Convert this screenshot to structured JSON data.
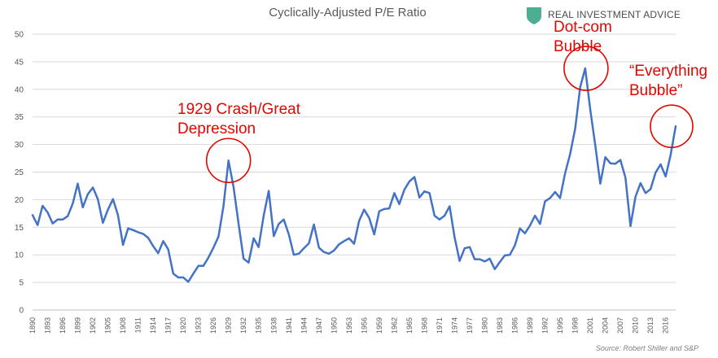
{
  "chart_data": {
    "type": "line",
    "title": "Cyclically-Adjusted P/E Ratio",
    "xlabel": "",
    "ylabel": "",
    "ylim": [
      0,
      50
    ],
    "yticks": [
      0,
      5,
      10,
      15,
      20,
      25,
      30,
      35,
      40,
      45,
      50
    ],
    "xlim": [
      1890,
      2018
    ],
    "xticks": [
      1890,
      1893,
      1896,
      1899,
      1902,
      1905,
      1908,
      1911,
      1914,
      1917,
      1920,
      1923,
      1926,
      1929,
      1932,
      1935,
      1938,
      1941,
      1944,
      1947,
      1950,
      1953,
      1956,
      1959,
      1962,
      1965,
      1968,
      1971,
      1974,
      1977,
      1980,
      1983,
      1986,
      1989,
      1992,
      1995,
      1998,
      2001,
      2004,
      2007,
      2010,
      2013,
      2016
    ],
    "grid": true,
    "legend": "none",
    "series": [
      {
        "color": "#4472c4",
        "x": [
          1890,
          1891,
          1892,
          1893,
          1894,
          1895,
          1896,
          1897,
          1898,
          1899,
          1900,
          1901,
          1902,
          1903,
          1904,
          1905,
          1906,
          1907,
          1908,
          1909,
          1910,
          1911,
          1912,
          1913,
          1914,
          1915,
          1916,
          1917,
          1918,
          1919,
          1920,
          1921,
          1922,
          1923,
          1924,
          1925,
          1926,
          1927,
          1928,
          1929,
          1930,
          1931,
          1932,
          1933,
          1934,
          1935,
          1936,
          1937,
          1938,
          1939,
          1940,
          1941,
          1942,
          1943,
          1944,
          1945,
          1946,
          1947,
          1948,
          1949,
          1950,
          1951,
          1952,
          1953,
          1954,
          1955,
          1956,
          1957,
          1958,
          1959,
          1960,
          1961,
          1962,
          1963,
          1964,
          1965,
          1966,
          1967,
          1968,
          1969,
          1970,
          1971,
          1972,
          1973,
          1974,
          1975,
          1976,
          1977,
          1978,
          1979,
          1980,
          1981,
          1982,
          1983,
          1984,
          1985,
          1986,
          1987,
          1988,
          1989,
          1990,
          1991,
          1992,
          1993,
          1994,
          1995,
          1996,
          1997,
          1998,
          1999,
          2000,
          2001,
          2002,
          2003,
          2004,
          2005,
          2006,
          2007,
          2008,
          2009,
          2010,
          2011,
          2012,
          2013,
          2014,
          2015,
          2016,
          2017,
          2018
        ],
        "values": [
          17.2,
          15.4,
          18.9,
          17.7,
          15.7,
          16.4,
          16.4,
          17.0,
          19.3,
          22.9,
          18.6,
          21.0,
          22.2,
          20.1,
          15.8,
          18.2,
          20.1,
          17.2,
          11.8,
          14.8,
          14.5,
          14.1,
          13.8,
          13.1,
          11.6,
          10.3,
          12.5,
          11.0,
          6.6,
          5.9,
          5.9,
          5.1,
          6.6,
          8.0,
          8.0,
          9.5,
          11.3,
          13.3,
          18.8,
          27.1,
          22.3,
          15.7,
          9.3,
          8.6,
          13.0,
          11.4,
          17.1,
          21.6,
          13.4,
          15.6,
          16.4,
          13.7,
          10.0,
          10.2,
          11.2,
          12.1,
          15.5,
          11.3,
          10.5,
          10.2,
          10.8,
          11.9,
          12.5,
          13.0,
          12.0,
          16.2,
          18.2,
          16.7,
          13.7,
          17.9,
          18.3,
          18.4,
          21.2,
          19.2,
          21.8,
          23.3,
          24.1,
          20.4,
          21.5,
          21.2,
          17.1,
          16.4,
          17.1,
          18.8,
          13.2,
          8.9,
          11.2,
          11.4,
          9.2,
          9.2,
          8.8,
          9.3,
          7.4,
          8.7,
          9.9,
          10.0,
          11.7,
          14.8,
          13.9,
          15.3,
          17.1,
          15.6,
          19.7,
          20.3,
          21.4,
          20.3,
          24.8,
          28.3,
          32.9,
          40.4,
          43.8,
          36.3,
          29.8,
          22.9,
          27.7,
          26.6,
          26.5,
          27.2,
          24.0,
          15.2,
          20.5,
          23.0,
          21.2,
          21.9,
          24.9,
          26.4,
          24.2,
          28.1,
          33.3
        ]
      }
    ],
    "annotations": [
      {
        "lines": [
          "1929 Crash/Great",
          "Depression"
        ],
        "year": 1929,
        "value": 27.1
      },
      {
        "lines": [
          "Dot-com",
          "Bubble"
        ],
        "year": 2000,
        "value": 43.8
      },
      {
        "lines": [
          "“Everything",
          "Bubble”"
        ],
        "year": 2018,
        "value": 33.3
      }
    ]
  },
  "brand": {
    "name": "REAL INVESTMENT ADVICE",
    "logo_icon": "shield-icon",
    "logo_color": "#4caf93"
  },
  "source": "Source: Robert Shiller and S&P"
}
